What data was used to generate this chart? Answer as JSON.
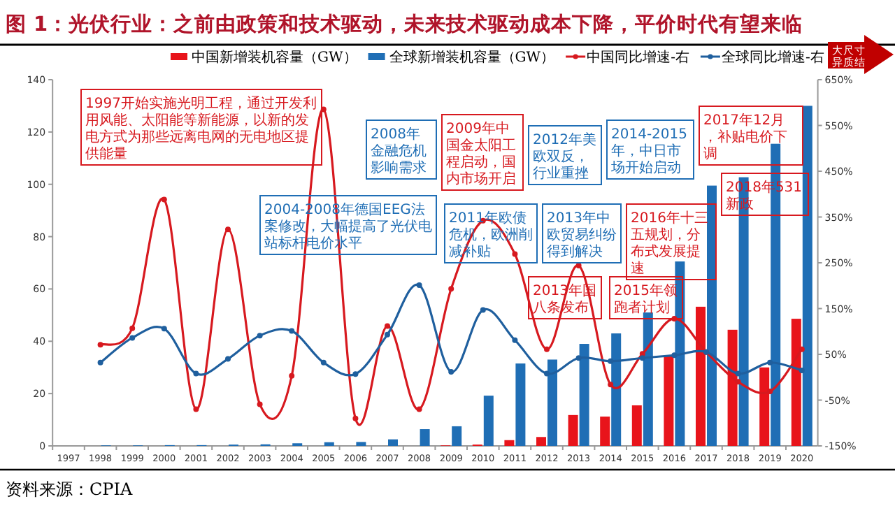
{
  "chart_data": {
    "type": "bar",
    "title": "图 1：光伏行业：之前由政策和技术驱动，未来技术驱动成本下降，平价时代有望来临",
    "categories": [
      "1997",
      "1998",
      "1999",
      "2000",
      "2001",
      "2002",
      "2003",
      "2004",
      "2005",
      "2006",
      "2007",
      "2008",
      "2009",
      "2010",
      "2011",
      "2012",
      "2013",
      "2014",
      "2015",
      "2016",
      "2017",
      "2018",
      "2019",
      "2020"
    ],
    "series": [
      {
        "name": "中国新增装机容量（GW）",
        "color": "#e8141b",
        "values": [
          0,
          0,
          0,
          0,
          0,
          0,
          0,
          0,
          0,
          0,
          0,
          null,
          0.2,
          0.5,
          2.2,
          3.4,
          11.8,
          11.2,
          15.5,
          34.2,
          53.2,
          44.4,
          30,
          48.6
        ]
      },
      {
        "name": "全球新增装机容量（GW）",
        "color": "#1f6eb5",
        "values": [
          null,
          0.2,
          0.2,
          0.3,
          0.3,
          0.5,
          0.6,
          1,
          1.4,
          1.5,
          2.5,
          6.4,
          7.5,
          19.2,
          31.5,
          33,
          39,
          43,
          51,
          70.5,
          99.5,
          102.7,
          115.5,
          130
        ]
      },
      {
        "name": "中国同比增速-右",
        "type": "line",
        "axis": "y2",
        "color": "#d7191f",
        "values": [
          null,
          71,
          107,
          388,
          -70,
          323,
          -59,
          3,
          585,
          -90,
          112,
          -70,
          193,
          342,
          269,
          61,
          244,
          -16,
          51,
          128,
          55,
          -10,
          -31,
          61
        ]
      },
      {
        "name": "全球同比增速-右",
        "type": "line",
        "axis": "y2",
        "color": "#1f5f9e",
        "values": [
          null,
          32,
          86,
          106,
          8,
          40,
          91,
          101,
          32,
          7,
          93,
          201,
          12,
          147,
          81,
          8,
          42,
          35,
          42,
          48,
          55,
          8,
          32,
          15
        ]
      }
    ],
    "ylim": [
      0,
      140
    ],
    "yticks": [
      0,
      20,
      40,
      60,
      80,
      100,
      120,
      140
    ],
    "y2lim": [
      -150,
      650
    ],
    "y2ticks": [
      {
        "value": -150,
        "label": "-150%"
      },
      {
        "value": -50,
        "label": "-50%"
      },
      {
        "value": 50,
        "label": "50%"
      },
      {
        "value": 150,
        "label": "150%"
      },
      {
        "value": 250,
        "label": "250%"
      },
      {
        "value": 350,
        "label": "350%"
      },
      {
        "value": 450,
        "label": "450%"
      },
      {
        "value": 550,
        "label": "550%"
      },
      {
        "value": 650,
        "label": "650%"
      }
    ],
    "legend": "top",
    "marker": "circle",
    "line_style": "solid",
    "grid": false,
    "annotations": [
      "1997开始实施光明工程，通过开发利用风能、太阳能等新能源，以新的发电方式为那些远离电网的无电地区提供能量",
      "2008年金融危机影响需求",
      "2009年中国金太阳工程启动，国内市场开启",
      "2012年美欧双反，行业重挫",
      "2014-2015年，中日市场开始启动",
      "2017年12月，补贴电价下调",
      "2004-2008年德国EEG法案修改，大幅提高了光伏电站标杆电价水平",
      "2011年欧债危机，欧洲削减补贴",
      "2013年中欧贸易纠纷得到解决",
      "2016年十三五规划，分布式发展提速",
      "2018年531新政",
      "2013年国八条发布",
      "2015年领跑者计划",
      "大尺寸异质结",
      "资料来源：CPIA"
    ]
  }
}
